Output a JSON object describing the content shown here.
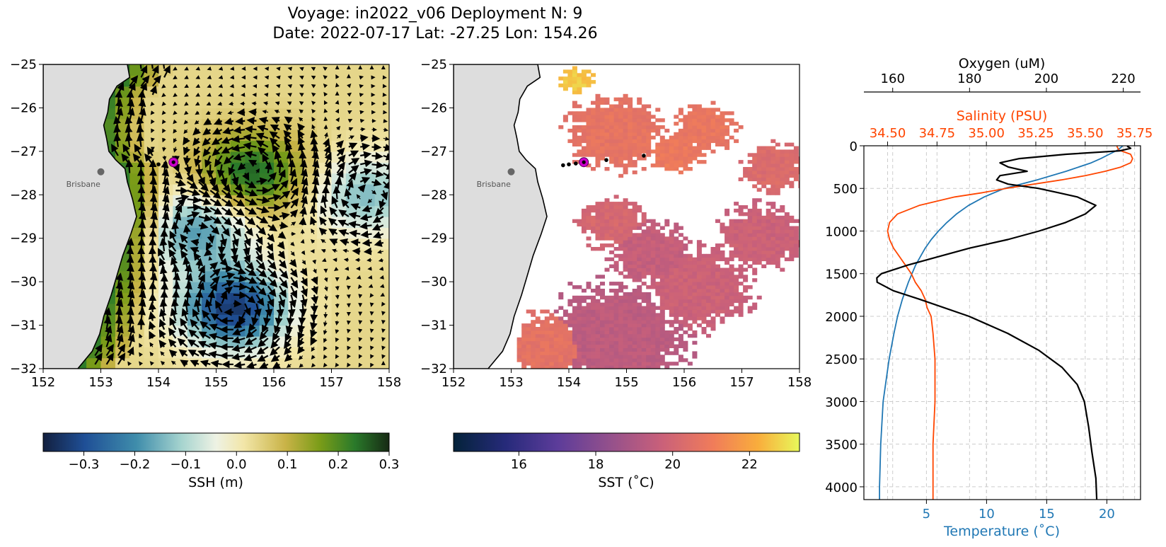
{
  "title": {
    "line1": "Voyage: in2022_v06 Deployment N: 9",
    "line2": "Date: 2022-07-17 Lat: -27.25 Lon: 154.26"
  },
  "colors": {
    "temperature": "#1f77b4",
    "salinity": "#ff4500",
    "oxygen": "#000000",
    "land": "#dddddd",
    "current_station": "#cc00cc"
  },
  "chart_data": [
    {
      "type": "heatmap",
      "name": "ssh-map",
      "xlim": [
        152,
        158
      ],
      "ylim": [
        -32,
        -25
      ],
      "xticks": [
        "152",
        "153",
        "154",
        "155",
        "156",
        "157",
        "158"
      ],
      "yticks": [
        "−32",
        "−31",
        "−30",
        "−29",
        "−28",
        "−27",
        "−26",
        "−25"
      ],
      "overlay": "surface current vectors",
      "colorbar": {
        "label": "SSH (m)",
        "range": [
          -0.38,
          0.3
        ],
        "ticks": [
          "−0.3",
          "−0.2",
          "−0.1",
          "0.0",
          "0.1",
          "0.2",
          "0.3"
        ],
        "tick_values": [
          -0.3,
          -0.2,
          -0.1,
          0.0,
          0.1,
          0.2,
          0.3
        ],
        "colormap": "delta"
      },
      "annotations": [
        {
          "text": "Brisbane",
          "lon": 152.4,
          "lat": -27.75
        }
      ],
      "city": {
        "lon": 153.0,
        "lat": -27.47
      },
      "stations": [
        {
          "lon": 153.9,
          "lat": -27.32
        },
        {
          "lon": 154.0,
          "lat": -27.3
        },
        {
          "lon": 154.12,
          "lat": -27.28
        },
        {
          "lon": 154.26,
          "lat": -27.25,
          "current": true
        }
      ],
      "features": [
        {
          "kind": "low",
          "lon": 155.3,
          "lat": -30.6,
          "value": -0.38
        },
        {
          "kind": "low",
          "lon": 154.7,
          "lat": -28.8,
          "value": -0.22
        },
        {
          "kind": "low",
          "lon": 157.6,
          "lat": -28.0,
          "value": -0.18
        },
        {
          "kind": "high",
          "lon": 155.6,
          "lat": -27.5,
          "value": 0.22
        }
      ]
    },
    {
      "type": "heatmap",
      "name": "sst-map",
      "xlim": [
        152,
        158
      ],
      "ylim": [
        -32,
        -25
      ],
      "xticks": [
        "152",
        "153",
        "154",
        "155",
        "156",
        "157",
        "158"
      ],
      "yticks": [
        "−32",
        "−31",
        "−30",
        "−29",
        "−28",
        "−27",
        "−26",
        "−25"
      ],
      "colorbar": {
        "label": "SST (˚C)",
        "range": [
          14.3,
          23.3
        ],
        "ticks": [
          "16",
          "18",
          "20",
          "22"
        ],
        "tick_values": [
          16,
          18,
          20,
          22
        ],
        "colormap": "thermal"
      },
      "annotations": [
        {
          "text": "Brisbane",
          "lon": 152.4,
          "lat": -27.75
        }
      ],
      "city": {
        "lon": 153.0,
        "lat": -27.47
      },
      "stations": [
        {
          "lon": 153.9,
          "lat": -27.32
        },
        {
          "lon": 154.0,
          "lat": -27.3
        },
        {
          "lon": 154.12,
          "lat": -27.28
        },
        {
          "lon": 154.26,
          "lat": -27.25,
          "current": true
        },
        {
          "lon": 154.65,
          "lat": -27.2
        },
        {
          "lon": 155.3,
          "lat": -27.1
        }
      ]
    },
    {
      "type": "line",
      "name": "ctd-profile",
      "y_label": "",
      "ylim": [
        4150,
        0
      ],
      "yticks": [
        "0",
        "500",
        "1000",
        "1500",
        "2000",
        "2500",
        "3000",
        "3500",
        "4000"
      ],
      "grid": true,
      "axes": {
        "temperature": {
          "label": "Temperature (˚C)",
          "range": [
            -0.2,
            22.8
          ],
          "ticks": [
            "5",
            "10",
            "15",
            "20"
          ],
          "tick_values": [
            5,
            10,
            15,
            20
          ]
        },
        "salinity": {
          "label": "Salinity (PSU)",
          "range": [
            34.38,
            35.78
          ],
          "ticks": [
            "34.50",
            "34.75",
            "35.00",
            "35.25",
            "35.50",
            "35.75"
          ],
          "tick_values": [
            34.5,
            34.75,
            35.0,
            35.25,
            35.5,
            35.75
          ]
        },
        "oxygen": {
          "label": "Oxygen (uM)",
          "range": [
            152.5,
            224.5
          ],
          "ticks": [
            "160",
            "180",
            "200",
            "220"
          ],
          "tick_values": [
            160,
            180,
            200,
            220
          ]
        }
      },
      "series": [
        {
          "key": "temperature",
          "depth": [
            5,
            50,
            100,
            150,
            200,
            300,
            400,
            500,
            600,
            700,
            800,
            900,
            1000,
            1100,
            1200,
            1300,
            1400,
            1500,
            1600,
            1800,
            2000,
            2200,
            2500,
            2800,
            3000,
            3500,
            4000,
            4150
          ],
          "values": [
            21.3,
            20.9,
            20.2,
            19.5,
            18.7,
            16.6,
            14.2,
            11.5,
            9.8,
            8.5,
            7.5,
            6.7,
            6.0,
            5.4,
            4.9,
            4.5,
            4.1,
            3.8,
            3.5,
            3.0,
            2.6,
            2.3,
            1.9,
            1.6,
            1.4,
            1.2,
            1.1,
            1.1
          ]
        },
        {
          "key": "salinity",
          "depth": [
            5,
            50,
            100,
            150,
            200,
            250,
            300,
            350,
            400,
            450,
            500,
            550,
            600,
            700,
            800,
            900,
            1000,
            1100,
            1200,
            1300,
            1400,
            1500,
            1600,
            1700,
            1800,
            1900,
            2000,
            2200,
            2500,
            2800,
            3000,
            3500,
            4000,
            4150
          ],
          "values": [
            35.66,
            35.67,
            35.73,
            35.74,
            35.73,
            35.68,
            35.6,
            35.5,
            35.38,
            35.24,
            35.1,
            34.98,
            34.84,
            34.66,
            34.55,
            34.51,
            34.5,
            34.51,
            34.53,
            34.56,
            34.59,
            34.62,
            34.64,
            34.67,
            34.69,
            34.7,
            34.72,
            34.73,
            34.74,
            34.74,
            34.74,
            34.73,
            34.73,
            34.73
          ]
        },
        {
          "key": "oxygen",
          "depth": [
            5,
            30,
            60,
            100,
            150,
            200,
            250,
            300,
            350,
            400,
            450,
            500,
            550,
            600,
            700,
            800,
            900,
            1000,
            1100,
            1200,
            1300,
            1400,
            1500,
            1550,
            1600,
            1700,
            1800,
            2000,
            2200,
            2400,
            2600,
            2800,
            3000,
            3300,
            3600,
            3900,
            4150
          ],
          "values": [
            221,
            222,
            219,
            205,
            193,
            188,
            190,
            195,
            188,
            187,
            190,
            198,
            203,
            208,
            213,
            210,
            205,
            198,
            190,
            180,
            172,
            164,
            157,
            156,
            156,
            160,
            167,
            180,
            190,
            198,
            204,
            208,
            210,
            211,
            212,
            213,
            213
          ]
        }
      ]
    }
  ]
}
